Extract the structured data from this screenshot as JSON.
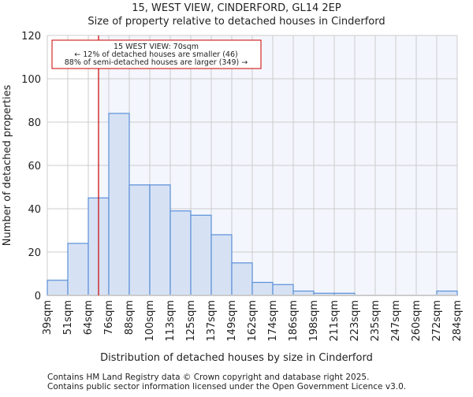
{
  "chart_data": {
    "type": "bar",
    "title": "15, WEST VIEW, CINDERFORD, GL14 2EP",
    "subtitle": "Size of property relative to detached houses in Cinderford",
    "xlabel": "Distribution of detached houses by size in Cinderford",
    "ylabel": "Number of detached properties",
    "ylim": [
      0,
      120
    ],
    "yticks": [
      0,
      20,
      40,
      60,
      80,
      100,
      120
    ],
    "bin_edges": [
      39,
      51,
      64,
      76,
      88,
      100,
      113,
      125,
      137,
      149,
      162,
      174,
      186,
      198,
      211,
      223,
      235,
      247,
      260,
      272,
      284
    ],
    "tick_labels": [
      "39sqm",
      "51sqm",
      "64sqm",
      "76sqm",
      "88sqm",
      "100sqm",
      "113sqm",
      "125sqm",
      "137sqm",
      "149sqm",
      "162sqm",
      "174sqm",
      "186sqm",
      "198sqm",
      "211sqm",
      "223sqm",
      "235sqm",
      "247sqm",
      "260sqm",
      "272sqm",
      "284sqm"
    ],
    "values": [
      7,
      24,
      45,
      84,
      51,
      51,
      39,
      37,
      28,
      15,
      6,
      5,
      2,
      1,
      1,
      0,
      0,
      0,
      0,
      2
    ],
    "marker_value": 70,
    "annotation": [
      "15 WEST VIEW: 70sqm",
      "← 12% of detached houses are smaller (46)",
      "88% of semi-detached houses are larger (349) →"
    ],
    "grid": true,
    "colors": {
      "bar_fill": "#d6e2f4",
      "bar_stroke": "#5b8fd8",
      "marker": "#cc0000",
      "grid": "#cccccc",
      "highlight_bg": "#f3f6fd"
    }
  },
  "footer": [
    "Contains HM Land Registry data © Crown copyright and database right 2025.",
    "Contains public sector information licensed under the Open Government Licence v3.0."
  ]
}
